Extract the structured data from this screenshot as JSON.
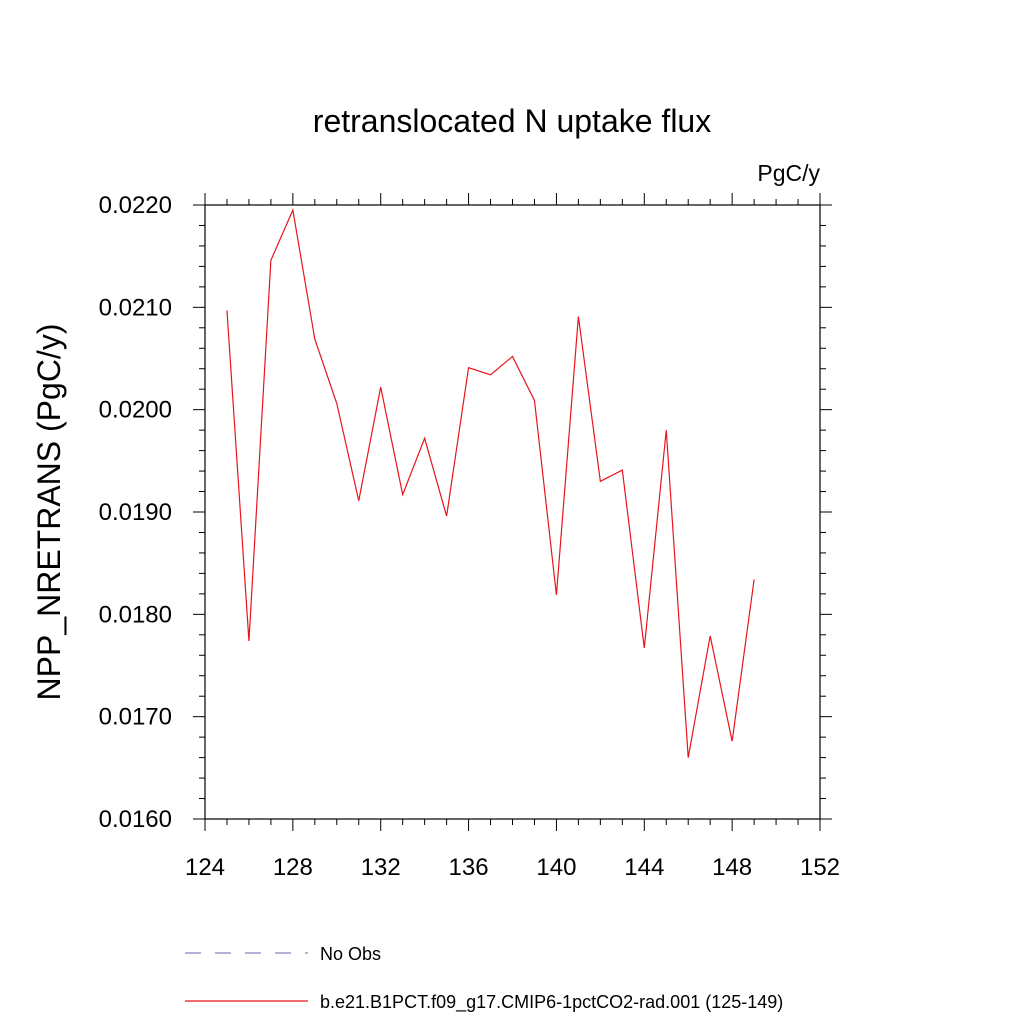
{
  "chart_data": {
    "type": "line",
    "title": "retranslocated N uptake flux",
    "units_label": "PgC/y",
    "ylabel": "NPP_NRETRANS  (PgC/y)",
    "xlabel": "",
    "xlim": [
      124,
      152
    ],
    "ylim": [
      0.016,
      0.022
    ],
    "x_ticks": [
      124,
      128,
      132,
      136,
      140,
      144,
      148,
      152
    ],
    "y_ticks": [
      "0.0160",
      "0.0170",
      "0.0180",
      "0.0190",
      "0.0200",
      "0.0210",
      "0.0220"
    ],
    "y_tick_values": [
      0.016,
      0.017,
      0.018,
      0.019,
      0.02,
      0.021,
      0.022
    ],
    "grid": false,
    "legend_position": "bottom",
    "series": [
      {
        "name": "b.e21.B1PCT.f09_g17.CMIP6-1pctCO2-rad.001 (125-149)",
        "color": "#e8141c",
        "style": "solid",
        "x": [
          125,
          126,
          127,
          128,
          129,
          130,
          131,
          132,
          133,
          134,
          135,
          136,
          137,
          138,
          139,
          140,
          141,
          142,
          143,
          144,
          145,
          146,
          147,
          148,
          149
        ],
        "values": [
          0.02097,
          0.01774,
          0.02146,
          0.02195,
          0.02069,
          0.02006,
          0.01911,
          0.02022,
          0.01917,
          0.01972,
          0.01896,
          0.02041,
          0.02034,
          0.02052,
          0.02009,
          0.01819,
          0.02091,
          0.0193,
          0.01941,
          0.01767,
          0.0198,
          0.0166,
          0.01779,
          0.01676,
          0.01834
        ]
      }
    ],
    "legend": [
      {
        "label": "No Obs",
        "color": "#8a7fbf",
        "style": "dashed"
      },
      {
        "label": "b.e21.B1PCT.f09_g17.CMIP6-1pctCO2-rad.001 (125-149)",
        "color": "#e8141c",
        "style": "solid"
      }
    ]
  }
}
